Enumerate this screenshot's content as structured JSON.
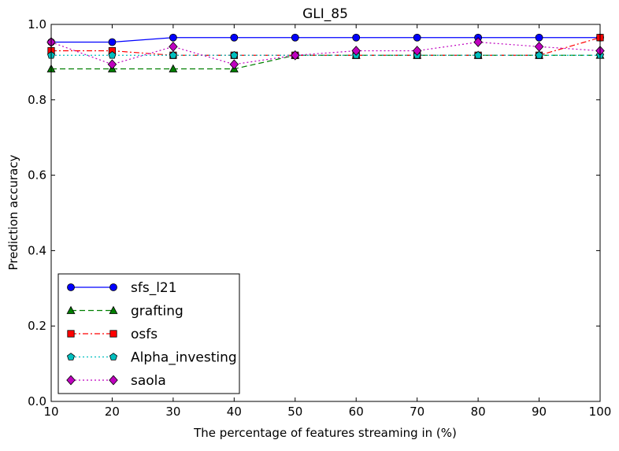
{
  "chart_data": {
    "type": "line",
    "title": "GLI_85",
    "xlabel": "The percentage of features streaming in (%)",
    "ylabel": "Prediction accuracy",
    "xlim": [
      10,
      100
    ],
    "ylim": [
      0.0,
      1.0
    ],
    "x": [
      10,
      20,
      30,
      40,
      50,
      60,
      70,
      80,
      90,
      100
    ],
    "xticks": [
      "10",
      "20",
      "30",
      "40",
      "50",
      "60",
      "70",
      "80",
      "90",
      "100"
    ],
    "yticks": [
      "0.0",
      "0.2",
      "0.4",
      "0.6",
      "0.8",
      "1.0"
    ],
    "legend_position": "lower-left",
    "grid": false,
    "series": [
      {
        "name": "sfs_l21",
        "color": "#0000ff",
        "marker": "circle",
        "linestyle": "solid",
        "values": [
          0.953,
          0.953,
          0.965,
          0.965,
          0.965,
          0.965,
          0.965,
          0.965,
          0.965,
          0.965
        ]
      },
      {
        "name": "grafting",
        "color": "#007f00",
        "marker": "triangle",
        "linestyle": "dashed",
        "values": [
          0.882,
          0.882,
          0.882,
          0.882,
          0.918,
          0.918,
          0.918,
          0.918,
          0.918,
          0.918
        ]
      },
      {
        "name": "osfs",
        "color": "#ff0000",
        "marker": "square",
        "linestyle": "dashdot",
        "values": [
          0.93,
          0.93,
          0.918,
          0.918,
          0.918,
          0.918,
          0.918,
          0.918,
          0.918,
          0.965
        ]
      },
      {
        "name": "Alpha_investing",
        "color": "#00bfbf",
        "marker": "pentagon",
        "linestyle": "dotted",
        "values": [
          0.918,
          0.918,
          0.918,
          0.918,
          0.918,
          0.918,
          0.918,
          0.918,
          0.918,
          0.918
        ]
      },
      {
        "name": "saola",
        "color": "#bf00bf",
        "marker": "diamond",
        "linestyle": "dotted",
        "values": [
          0.953,
          0.894,
          0.941,
          0.894,
          0.918,
          0.93,
          0.93,
          0.953,
          0.941,
          0.93
        ]
      }
    ]
  }
}
